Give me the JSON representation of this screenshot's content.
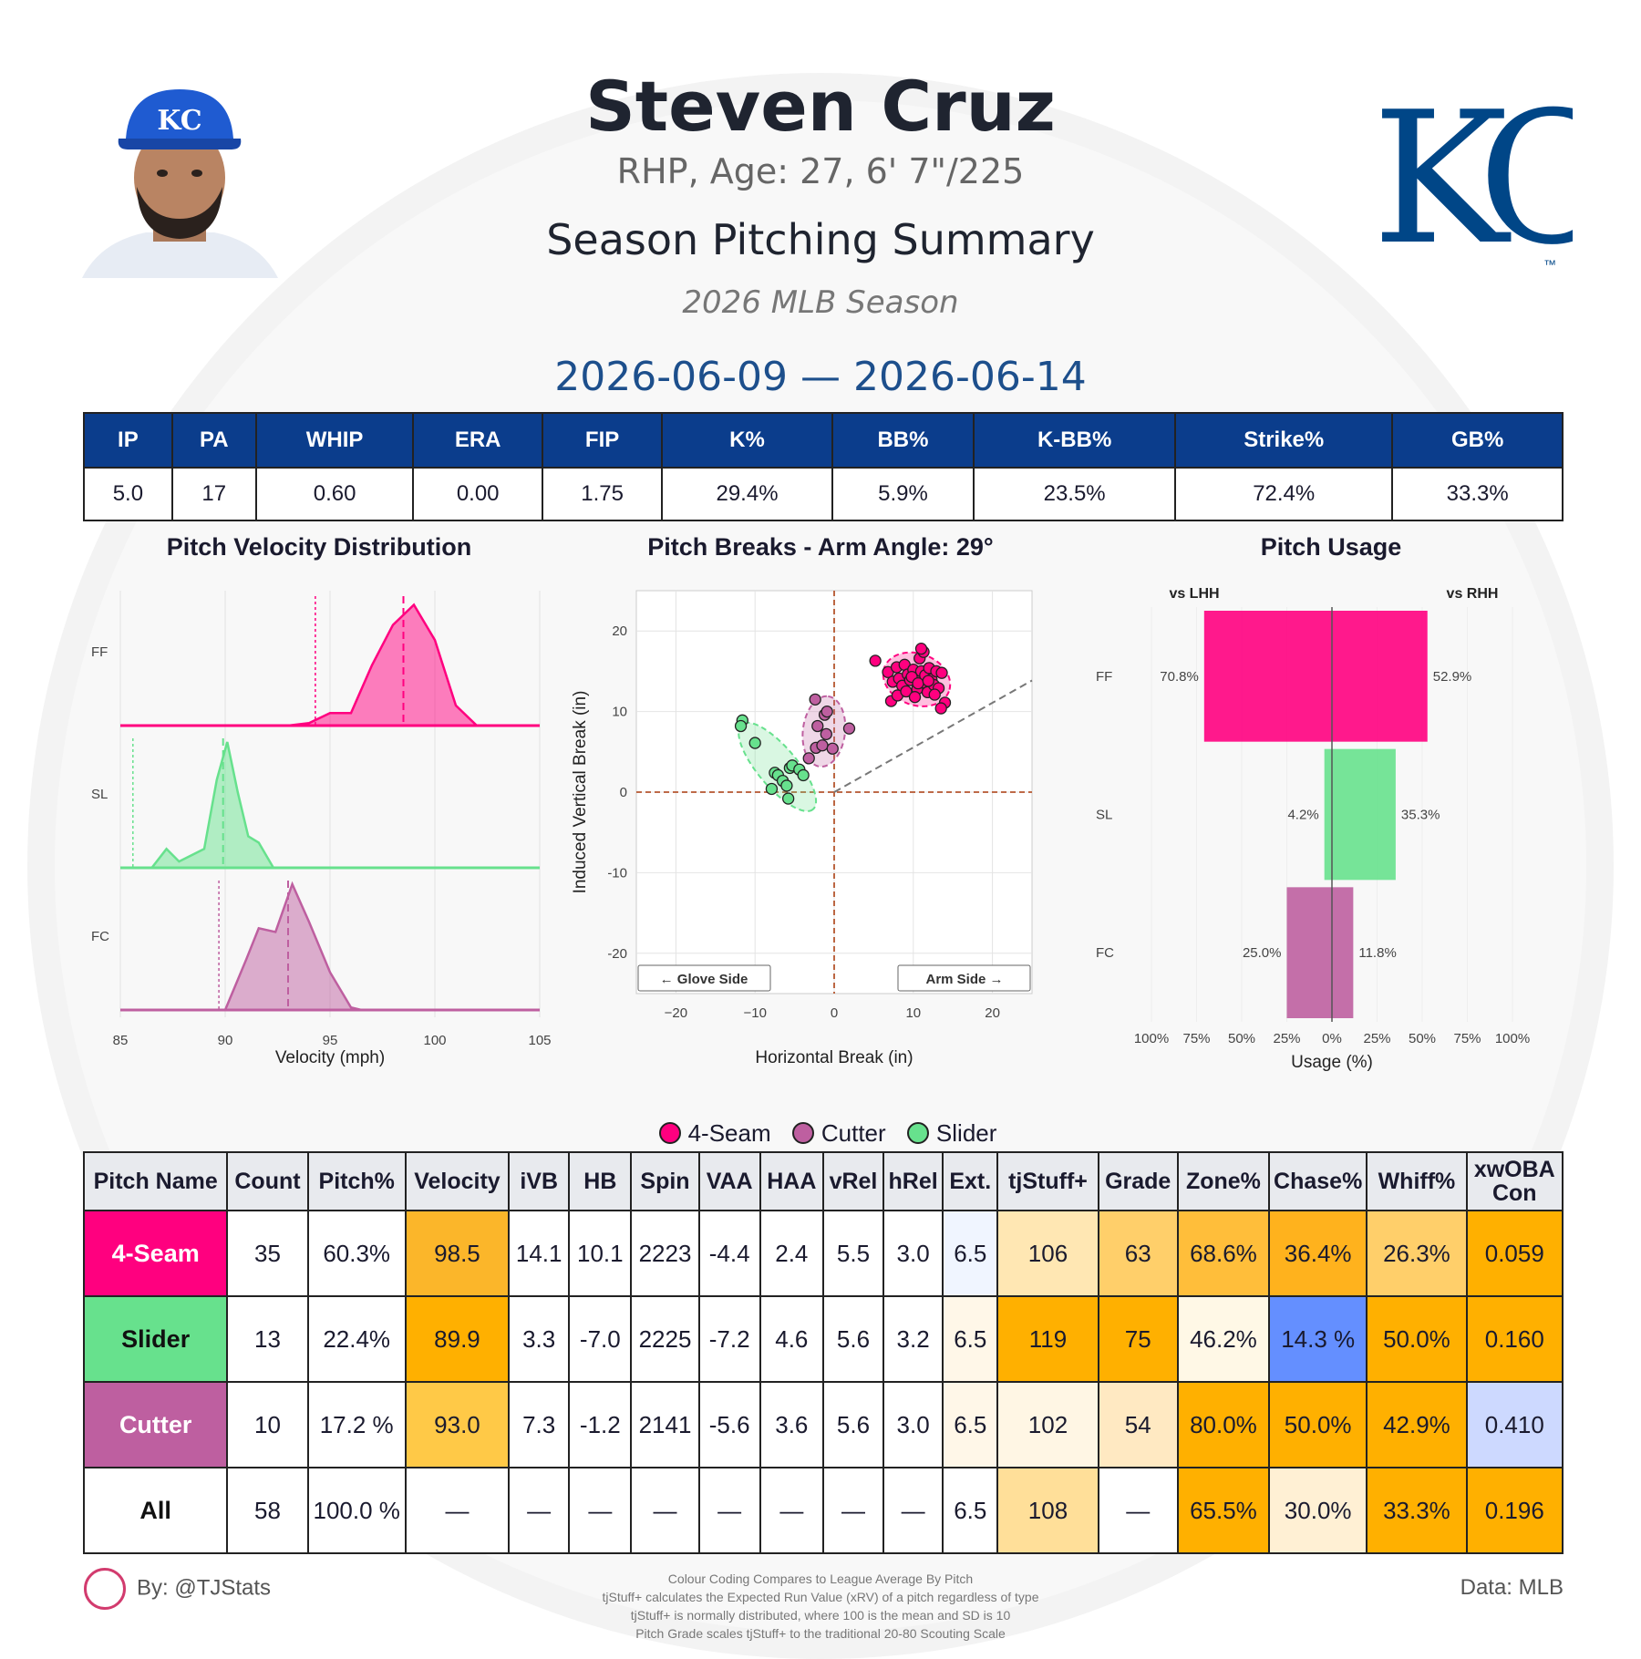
{
  "header": {
    "name": "Steven Cruz",
    "bio": "RHP, Age: 27, 6' 7\"/225",
    "section_title": "Season Pitching Summary",
    "season": "2026 MLB Season",
    "date_range": "2026-06-09 — 2026-06-14",
    "team_logo_text": "KC",
    "cap_logo_text": "KC"
  },
  "colors": {
    "header_blue": "#0b3d8c",
    "four_seam": "#ff007f",
    "slider": "#67e18d",
    "cutter": "#be5fa0",
    "kc_blue": "#004687",
    "table_high": "#ffb000",
    "table_mid": "#ffd56b",
    "table_low_blue": "#648fff"
  },
  "stats_table": {
    "headers": [
      "IP",
      "PA",
      "WHIP",
      "ERA",
      "FIP",
      "K%",
      "BB%",
      "K-BB%",
      "Strike%",
      "GB%"
    ],
    "values": [
      "5.0",
      "17",
      "0.60",
      "0.00",
      "1.75",
      "29.4%",
      "5.9%",
      "23.5%",
      "72.4%",
      "33.3%"
    ]
  },
  "panels": {
    "velocity_title": "Pitch Velocity Distribution",
    "breaks_title": "Pitch Breaks - Arm Angle: 29°",
    "usage_title": "Pitch Usage"
  },
  "chart_data": [
    {
      "type": "area",
      "title": "Pitch Velocity Distribution",
      "xlabel": "Velocity (mph)",
      "xlim": [
        85,
        105
      ],
      "xticks": [
        "85",
        "90",
        "95",
        "100",
        "105"
      ],
      "series": [
        {
          "name": "FF",
          "mean": 98.5,
          "league_avg": 94.3,
          "density": [
            [
              93,
              0.0
            ],
            [
              94,
              0.02
            ],
            [
              95,
              0.1
            ],
            [
              96,
              0.1
            ],
            [
              97,
              0.48
            ],
            [
              98,
              0.8
            ],
            [
              99,
              0.96
            ],
            [
              100,
              0.68
            ],
            [
              101,
              0.16
            ],
            [
              102,
              0.0
            ]
          ]
        },
        {
          "name": "SL",
          "mean": 89.9,
          "league_avg": 85.6,
          "density": [
            [
              86.5,
              0.0
            ],
            [
              87.2,
              0.15
            ],
            [
              87.8,
              0.05
            ],
            [
              89,
              0.15
            ],
            [
              89.6,
              0.7
            ],
            [
              90.1,
              1.0
            ],
            [
              90.6,
              0.6
            ],
            [
              91.1,
              0.25
            ],
            [
              91.6,
              0.2
            ],
            [
              92.3,
              0.0
            ]
          ]
        },
        {
          "name": "FC",
          "mean": 93.0,
          "league_avg": 89.7,
          "density": [
            [
              90,
              0.0
            ],
            [
              91,
              0.4
            ],
            [
              91.6,
              0.65
            ],
            [
              92.4,
              0.62
            ],
            [
              93.2,
              1.0
            ],
            [
              94,
              0.7
            ],
            [
              95,
              0.3
            ],
            [
              96,
              0.02
            ],
            [
              96.5,
              0.0
            ]
          ]
        }
      ]
    },
    {
      "type": "scatter",
      "title": "Pitch Breaks - Arm Angle: 29°",
      "xlabel": "Horizontal Break (in)",
      "ylabel": "Induced Vertical Break (in)",
      "xlim": [
        -25,
        25
      ],
      "ylim": [
        -25,
        25
      ],
      "xticks": [
        "−20",
        "−10",
        "0",
        "10",
        "20"
      ],
      "yticks": [
        "20",
        "10",
        "0",
        "-10",
        "-20"
      ],
      "arm_angle_deg": 29,
      "annotations": [
        "← Glove Side",
        "Arm Side →"
      ],
      "series": [
        {
          "name": "4-Seam",
          "points": [
            [
              5.2,
              16.3
            ],
            [
              6.8,
              14.9
            ],
            [
              7.4,
              13.7
            ],
            [
              7.9,
              15.5
            ],
            [
              8.2,
              14.1
            ],
            [
              8.6,
              13.2
            ],
            [
              8.9,
              15.8
            ],
            [
              9.3,
              14.6
            ],
            [
              9.6,
              13.9
            ],
            [
              10.0,
              15.2
            ],
            [
              10.3,
              14.2
            ],
            [
              10.5,
              12.8
            ],
            [
              10.8,
              16.6
            ],
            [
              11.0,
              15.0
            ],
            [
              11.2,
              13.6
            ],
            [
              11.5,
              14.5
            ],
            [
              11.8,
              12.4
            ],
            [
              12.0,
              15.4
            ],
            [
              12.3,
              14.0
            ],
            [
              12.6,
              13.3
            ],
            [
              12.9,
              15.0
            ],
            [
              13.2,
              12.9
            ],
            [
              13.6,
              14.8
            ],
            [
              7.2,
              11.3
            ],
            [
              8.0,
              12.0
            ],
            [
              9.1,
              12.5
            ],
            [
              10.2,
              11.8
            ],
            [
              11.3,
              17.4
            ],
            [
              11.0,
              17.8
            ],
            [
              12.7,
              12.1
            ],
            [
              14.0,
              11.1
            ],
            [
              13.5,
              10.4
            ],
            [
              9.8,
              14.3
            ],
            [
              10.6,
              13.5
            ],
            [
              11.9,
              13.8
            ]
          ]
        },
        {
          "name": "Cutter",
          "points": [
            [
              -2.4,
              11.5
            ],
            [
              -1.2,
              9.6
            ],
            [
              -0.9,
              10.0
            ],
            [
              -2.1,
              8.2
            ],
            [
              1.9,
              7.9
            ],
            [
              -3.2,
              4.2
            ],
            [
              -2.3,
              5.5
            ],
            [
              -1.5,
              5.8
            ],
            [
              -0.2,
              5.4
            ],
            [
              -1.0,
              7.2
            ]
          ]
        },
        {
          "name": "Slider",
          "points": [
            [
              -11.6,
              8.9
            ],
            [
              -11.8,
              8.2
            ],
            [
              -10.0,
              6.1
            ],
            [
              -7.9,
              0.4
            ],
            [
              -7.5,
              2.4
            ],
            [
              -7.1,
              2.1
            ],
            [
              -6.5,
              1.4
            ],
            [
              -5.6,
              3.0
            ],
            [
              -5.3,
              3.3
            ],
            [
              -4.4,
              2.8
            ],
            [
              -3.9,
              2.1
            ],
            [
              -6.0,
              0.8
            ],
            [
              -5.8,
              -0.8
            ]
          ]
        }
      ]
    },
    {
      "type": "bar",
      "title": "Pitch Usage",
      "xlabel": "Usage (%)",
      "categories": [
        "FF",
        "SL",
        "FC"
      ],
      "xticks": [
        "100%",
        "75%",
        "50%",
        "25%",
        "0%",
        "25%",
        "50%",
        "75%",
        "100%"
      ],
      "series": [
        {
          "name": "vs LHH",
          "values": [
            70.8,
            4.2,
            25.0
          ],
          "labels": [
            "70.8%",
            "4.2%",
            "25.0%"
          ]
        },
        {
          "name": "vs RHH",
          "values": [
            52.9,
            35.3,
            11.8
          ],
          "labels": [
            "52.9%",
            "35.3%",
            "11.8%"
          ]
        }
      ]
    }
  ],
  "legend": [
    "4-Seam",
    "Cutter",
    "Slider"
  ],
  "pitch_table": {
    "headers": [
      "Pitch Name",
      "Count",
      "Pitch%",
      "Velocity",
      "iVB",
      "HB",
      "Spin",
      "VAA",
      "HAA",
      "vRel",
      "hRel",
      "Ext.",
      "tjStuff+",
      "Grade",
      "Zone%",
      "Chase%",
      "Whiff%",
      "xwOBA Con"
    ],
    "rows": [
      {
        "name": "4-Seam",
        "color": "#ff007f",
        "text_color": "#ffffff",
        "cells": [
          "35",
          "60.3%",
          "98.5",
          "14.1",
          "10.1",
          "2223",
          "-4.4",
          "2.4",
          "5.5",
          "3.0",
          "6.5",
          "106",
          "63",
          "68.6%",
          "36.4%",
          "26.3%",
          "0.059"
        ],
        "bg": [
          "#fff",
          "#fff",
          "#fbb62a",
          "#fff",
          "#fff",
          "#fff",
          "#fff",
          "#fff",
          "#fff",
          "#fff",
          "#f0f5ff",
          "#ffe7b3",
          "#ffcf6a",
          "#ffbe3a",
          "#ffb21d",
          "#ffcf6a",
          "#ffb000"
        ]
      },
      {
        "name": "Slider",
        "color": "#67e18d",
        "text_color": "#111111",
        "cells": [
          "13",
          "22.4%",
          "89.9",
          "3.3",
          "-7.0",
          "2225",
          "-7.2",
          "4.6",
          "5.6",
          "3.2",
          "6.5",
          "119",
          "75",
          "46.2%",
          "14.3 %",
          "50.0%",
          "0.160"
        ],
        "bg": [
          "#fff",
          "#fff",
          "#ffb000",
          "#fff",
          "#fff",
          "#fff",
          "#fff",
          "#fff",
          "#fff",
          "#fff",
          "#fff7e8",
          "#ffb000",
          "#ffb000",
          "#fff8e6",
          "#648fff",
          "#ffb000",
          "#ffb000"
        ]
      },
      {
        "name": "Cutter",
        "color": "#be5fa0",
        "text_color": "#ffffff",
        "cells": [
          "10",
          "17.2 %",
          "93.0",
          "7.3",
          "-1.2",
          "2141",
          "-5.6",
          "3.6",
          "5.6",
          "3.0",
          "6.5",
          "102",
          "54",
          "80.0%",
          "50.0%",
          "42.9%",
          "0.410"
        ],
        "bg": [
          "#fff",
          "#fff",
          "#ffc947",
          "#fff",
          "#fff",
          "#fff",
          "#fff",
          "#fff",
          "#fff",
          "#fff",
          "#fff7e8",
          "#fff6e4",
          "#ffe9c2",
          "#ffb000",
          "#ffb000",
          "#ffb000",
          "#cdd9ff"
        ]
      },
      {
        "name": "All",
        "color": "#ffffff",
        "text_color": "#111111",
        "cells": [
          "58",
          "100.0 %",
          "—",
          "—",
          "—",
          "—",
          "—",
          "—",
          "—",
          "—",
          "6.5",
          "108",
          "—",
          "65.5%",
          "30.0%",
          "33.3%",
          "0.196"
        ],
        "bg": [
          "#fff",
          "#fff",
          "#fff",
          "#fff",
          "#fff",
          "#fff",
          "#fff",
          "#fff",
          "#fff",
          "#fff",
          "#fff",
          "#ffdf99",
          "#fff",
          "#ffb000",
          "#fff0d4",
          "#ffb000",
          "#ffb000"
        ]
      }
    ]
  },
  "footer": {
    "by": "By: @TJStats",
    "data": "Data: MLB",
    "notes": [
      "Colour Coding Compares to League Average By Pitch",
      "tjStuff+ calculates the Expected Run Value (xRV) of a pitch regardless of type",
      "tjStuff+ is normally distributed, where 100 is the mean and SD is 10",
      "Pitch Grade scales tjStuff+ to the traditional 20-80 Scouting Scale"
    ]
  }
}
